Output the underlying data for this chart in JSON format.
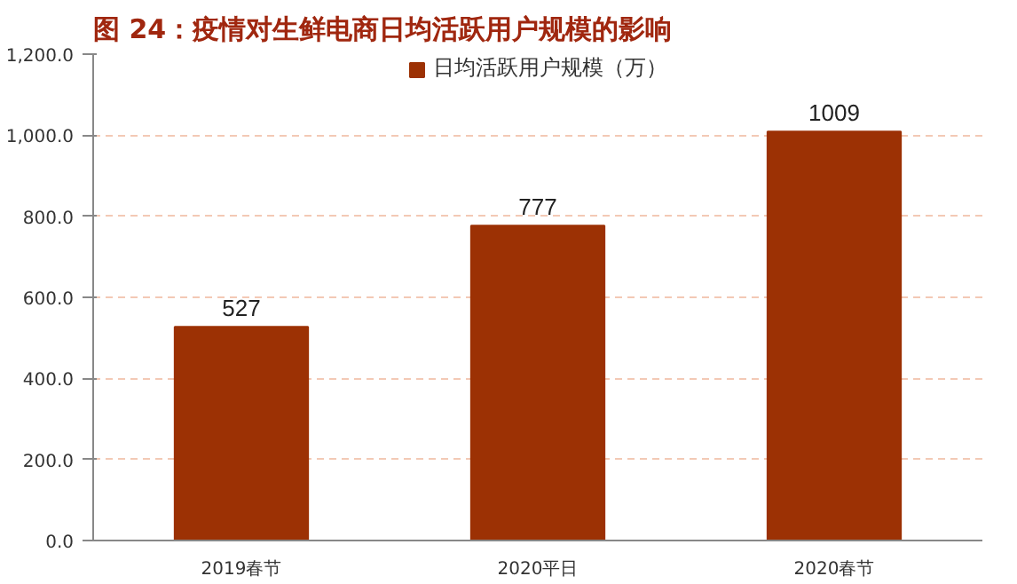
{
  "chart_data": {
    "type": "bar",
    "title": "图 24：疫情对生鲜电商日均活跃用户规模的影响",
    "categories": [
      "2019春节",
      "2020平日",
      "2020春节"
    ],
    "series": [
      {
        "name": "日均活跃用户规模（万）",
        "color": "#9c3104",
        "values": [
          527,
          777,
          1009
        ]
      }
    ],
    "ylim": [
      0,
      1200
    ],
    "yticks": [
      {
        "value": 0,
        "label": "0.0"
      },
      {
        "value": 200,
        "label": "200.0"
      },
      {
        "value": 400,
        "label": "400.0"
      },
      {
        "value": 600,
        "label": "600.0"
      },
      {
        "value": 800,
        "label": "800.0"
      },
      {
        "value": 1000,
        "label": "1,000.0"
      },
      {
        "value": 1200,
        "label": "1,200.0"
      }
    ],
    "grid": "y",
    "legend": "top",
    "data_labels": true
  }
}
